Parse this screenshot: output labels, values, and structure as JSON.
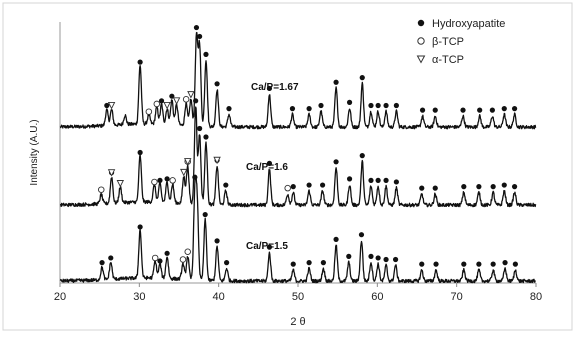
{
  "chart_data": {
    "type": "line",
    "xlabel": "2 θ",
    "ylabel": "Intensity (A.U.)",
    "xlim": [
      20,
      80
    ],
    "x_ticks": [
      20,
      30,
      40,
      50,
      60,
      70,
      80
    ],
    "y_ticks_shown": false,
    "grid": false,
    "legend_position": "top-right",
    "legend": [
      {
        "label": "Hydroxyapatite",
        "marker": "filled-circle"
      },
      {
        "label": "β-TCP",
        "marker": "open-circle"
      },
      {
        "label": "α-TCP",
        "marker": "open-triangle"
      }
    ],
    "series": [
      {
        "name": "Ca/P=1.67",
        "peaks": [
          {
            "x": 25.9,
            "h": 0.1
          },
          {
            "x": 26.5,
            "h": 0.1
          },
          {
            "x": 28.2,
            "h": 0.06
          },
          {
            "x": 30.1,
            "h": 0.38
          },
          {
            "x": 31.2,
            "h": 0.06
          },
          {
            "x": 32.2,
            "h": 0.11
          },
          {
            "x": 32.8,
            "h": 0.13
          },
          {
            "x": 33.5,
            "h": 0.1
          },
          {
            "x": 34.1,
            "h": 0.16
          },
          {
            "x": 34.7,
            "h": 0.13
          },
          {
            "x": 35.9,
            "h": 0.14
          },
          {
            "x": 36.5,
            "h": 0.17
          },
          {
            "x": 37.2,
            "h": 0.58
          },
          {
            "x": 37.6,
            "h": 0.52
          },
          {
            "x": 38.4,
            "h": 0.43
          },
          {
            "x": 39.8,
            "h": 0.24
          },
          {
            "x": 41.3,
            "h": 0.08
          },
          {
            "x": 46.4,
            "h": 0.21
          },
          {
            "x": 49.3,
            "h": 0.08
          },
          {
            "x": 51.4,
            "h": 0.08
          },
          {
            "x": 52.9,
            "h": 0.1
          },
          {
            "x": 54.8,
            "h": 0.25
          },
          {
            "x": 56.5,
            "h": 0.12
          },
          {
            "x": 58.1,
            "h": 0.28
          },
          {
            "x": 59.2,
            "h": 0.1
          },
          {
            "x": 60.1,
            "h": 0.1
          },
          {
            "x": 61.1,
            "h": 0.1
          },
          {
            "x": 62.4,
            "h": 0.1
          },
          {
            "x": 65.7,
            "h": 0.07
          },
          {
            "x": 67.3,
            "h": 0.07
          },
          {
            "x": 70.8,
            "h": 0.07
          },
          {
            "x": 72.9,
            "h": 0.07
          },
          {
            "x": 74.5,
            "h": 0.07
          },
          {
            "x": 76.0,
            "h": 0.08
          },
          {
            "x": 77.3,
            "h": 0.08
          }
        ]
      },
      {
        "name": "Ca/P=1.6",
        "peaks": [
          {
            "x": 25.2,
            "h": 0.06
          },
          {
            "x": 26.5,
            "h": 0.17
          },
          {
            "x": 27.6,
            "h": 0.1
          },
          {
            "x": 30.1,
            "h": 0.3
          },
          {
            "x": 31.9,
            "h": 0.11
          },
          {
            "x": 32.6,
            "h": 0.12
          },
          {
            "x": 33.5,
            "h": 0.13
          },
          {
            "x": 34.2,
            "h": 0.12
          },
          {
            "x": 35.6,
            "h": 0.17
          },
          {
            "x": 36.1,
            "h": 0.24
          },
          {
            "x": 37.1,
            "h": 0.63
          },
          {
            "x": 37.6,
            "h": 0.45
          },
          {
            "x": 38.4,
            "h": 0.4
          },
          {
            "x": 39.8,
            "h": 0.25
          },
          {
            "x": 40.9,
            "h": 0.09
          },
          {
            "x": 46.4,
            "h": 0.23
          },
          {
            "x": 48.7,
            "h": 0.07
          },
          {
            "x": 49.4,
            "h": 0.08
          },
          {
            "x": 51.4,
            "h": 0.09
          },
          {
            "x": 53.1,
            "h": 0.09
          },
          {
            "x": 54.8,
            "h": 0.24
          },
          {
            "x": 56.5,
            "h": 0.13
          },
          {
            "x": 58.1,
            "h": 0.28
          },
          {
            "x": 59.2,
            "h": 0.12
          },
          {
            "x": 60.1,
            "h": 0.12
          },
          {
            "x": 61.1,
            "h": 0.12
          },
          {
            "x": 62.4,
            "h": 0.11
          },
          {
            "x": 65.6,
            "h": 0.07
          },
          {
            "x": 67.3,
            "h": 0.07
          },
          {
            "x": 70.9,
            "h": 0.08
          },
          {
            "x": 72.8,
            "h": 0.08
          },
          {
            "x": 74.6,
            "h": 0.08
          },
          {
            "x": 76.0,
            "h": 0.09
          },
          {
            "x": 77.3,
            "h": 0.08
          }
        ]
      },
      {
        "name": "Ca/P=1.5",
        "peaks": [
          {
            "x": 25.3,
            "h": 0.08
          },
          {
            "x": 26.4,
            "h": 0.11
          },
          {
            "x": 30.1,
            "h": 0.31
          },
          {
            "x": 32.0,
            "h": 0.11
          },
          {
            "x": 32.6,
            "h": 0.09
          },
          {
            "x": 33.5,
            "h": 0.14
          },
          {
            "x": 35.5,
            "h": 0.1
          },
          {
            "x": 36.1,
            "h": 0.15
          },
          {
            "x": 37.0,
            "h": 0.55
          },
          {
            "x": 37.3,
            "h": 0.47
          },
          {
            "x": 38.3,
            "h": 0.39
          },
          {
            "x": 39.8,
            "h": 0.22
          },
          {
            "x": 41.0,
            "h": 0.08
          },
          {
            "x": 46.4,
            "h": 0.18
          },
          {
            "x": 49.4,
            "h": 0.07
          },
          {
            "x": 51.4,
            "h": 0.08
          },
          {
            "x": 53.2,
            "h": 0.08
          },
          {
            "x": 54.8,
            "h": 0.23
          },
          {
            "x": 56.4,
            "h": 0.12
          },
          {
            "x": 58.0,
            "h": 0.26
          },
          {
            "x": 59.2,
            "h": 0.12
          },
          {
            "x": 60.1,
            "h": 0.11
          },
          {
            "x": 61.1,
            "h": 0.1
          },
          {
            "x": 62.3,
            "h": 0.1
          },
          {
            "x": 65.6,
            "h": 0.07
          },
          {
            "x": 67.4,
            "h": 0.07
          },
          {
            "x": 70.9,
            "h": 0.07
          },
          {
            "x": 72.8,
            "h": 0.07
          },
          {
            "x": 74.6,
            "h": 0.07
          },
          {
            "x": 76.1,
            "h": 0.08
          },
          {
            "x": 77.4,
            "h": 0.07
          }
        ]
      }
    ],
    "markers": [
      {
        "series": 0,
        "type": "filled-circle",
        "x": [
          25.9,
          30.1,
          32.8,
          34.1,
          37.2,
          37.6,
          38.4,
          39.8,
          41.3,
          46.4,
          49.3,
          51.4,
          52.9,
          54.8,
          56.5,
          58.1,
          59.2,
          60.1,
          61.1,
          62.4,
          65.7,
          67.3,
          70.8,
          72.9,
          74.5,
          76.0,
          77.3
        ]
      },
      {
        "series": 0,
        "type": "open-circle",
        "x": [
          31.2,
          32.2,
          35.9
        ]
      },
      {
        "series": 0,
        "type": "open-triangle",
        "x": [
          26.5,
          33.5,
          34.7,
          36.5
        ]
      },
      {
        "series": 1,
        "type": "filled-circle",
        "x": [
          26.5,
          30.1,
          32.6,
          33.5,
          37.1,
          37.6,
          38.4,
          39.8,
          40.9,
          46.4,
          49.4,
          51.4,
          53.1,
          54.8,
          56.5,
          58.1,
          59.2,
          60.1,
          61.1,
          62.4,
          65.6,
          67.3,
          70.9,
          72.8,
          74.6,
          76.0,
          77.3
        ]
      },
      {
        "series": 1,
        "type": "open-circle",
        "x": [
          25.2,
          31.9,
          34.2,
          36.1,
          48.7
        ]
      },
      {
        "series": 1,
        "type": "open-triangle",
        "x": [
          26.5,
          27.6,
          35.6,
          36.1,
          39.8
        ]
      },
      {
        "series": 2,
        "type": "filled-circle",
        "x": [
          25.3,
          26.4,
          30.1,
          32.6,
          33.5,
          37.0,
          38.3,
          39.8,
          41.0,
          46.4,
          49.4,
          51.4,
          53.2,
          54.8,
          56.4,
          58.0,
          59.2,
          60.1,
          61.1,
          62.3,
          65.6,
          67.4,
          70.9,
          72.8,
          74.6,
          76.1,
          77.4
        ]
      },
      {
        "series": 2,
        "type": "open-circle",
        "x": [
          32.0,
          35.5,
          36.1
        ]
      }
    ]
  }
}
